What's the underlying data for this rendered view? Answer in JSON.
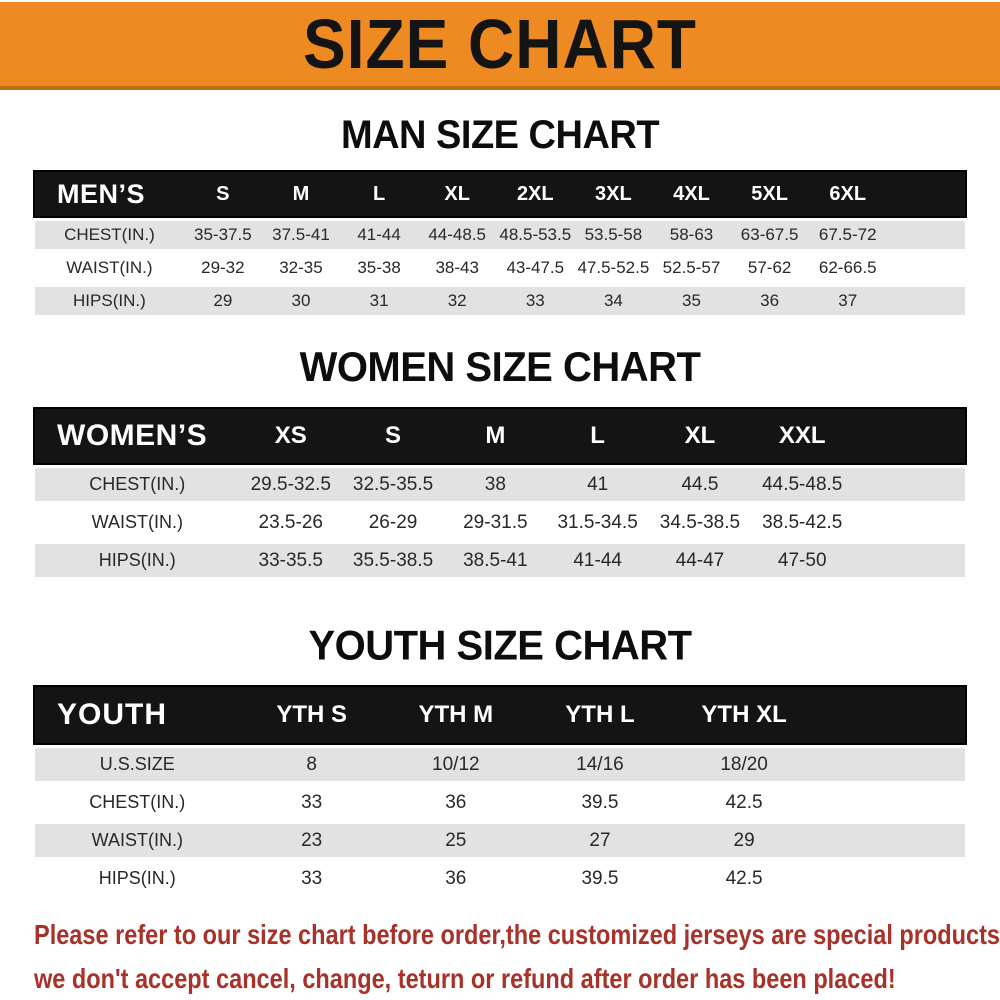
{
  "banner": {
    "title": "SIZE CHART",
    "bg_color": "#ed8a21",
    "text_color": "#141414"
  },
  "sections": {
    "men": {
      "heading": "MAN SIZE CHART",
      "corner_label": "MEN’S",
      "sizes": [
        "S",
        "M",
        "L",
        "XL",
        "2XL",
        "3XL",
        "4XL",
        "5XL",
        "6XL"
      ],
      "rows": [
        {
          "label": "CHEST(IN.)",
          "values": [
            "35-37.5",
            "37.5-41",
            "41-44",
            "44-48.5",
            "48.5-53.5",
            "53.5-58",
            "58-63",
            "63-67.5",
            "67.5-72"
          ]
        },
        {
          "label": "WAIST(IN.)",
          "values": [
            "29-32",
            "32-35",
            "35-38",
            "38-43",
            "43-47.5",
            "47.5-52.5",
            "52.5-57",
            "57-62",
            "62-66.5"
          ]
        },
        {
          "label": "HIPS(IN.)",
          "values": [
            "29",
            "30",
            "31",
            "32",
            "33",
            "34",
            "35",
            "36",
            "37"
          ]
        }
      ]
    },
    "women": {
      "heading": "WOMEN SIZE CHART",
      "corner_label": "WOMEN’S",
      "sizes": [
        "XS",
        "S",
        "M",
        "L",
        "XL",
        "XXL"
      ],
      "rows": [
        {
          "label": "CHEST(IN.)",
          "values": [
            "29.5-32.5",
            "32.5-35.5",
            "38",
            "41",
            "44.5",
            "44.5-48.5"
          ]
        },
        {
          "label": "WAIST(IN.)",
          "values": [
            "23.5-26",
            "26-29",
            "29-31.5",
            "31.5-34.5",
            "34.5-38.5",
            "38.5-42.5"
          ]
        },
        {
          "label": "HIPS(IN.)",
          "values": [
            "33-35.5",
            "35.5-38.5",
            "38.5-41",
            "41-44",
            "44-47",
            "47-50"
          ]
        }
      ]
    },
    "youth": {
      "heading": "YOUTH SIZE CHART",
      "corner_label": "YOUTH",
      "sizes": [
        "YTH S",
        "YTH M",
        "YTH L",
        "YTH XL"
      ],
      "rows": [
        {
          "label": "U.S.SIZE",
          "values": [
            "8",
            "10/12",
            "14/16",
            "18/20"
          ]
        },
        {
          "label": "CHEST(IN.)",
          "values": [
            "33",
            "36",
            "39.5",
            "42.5"
          ]
        },
        {
          "label": "WAIST(IN.)",
          "values": [
            "23",
            "25",
            "27",
            "29"
          ]
        },
        {
          "label": "HIPS(IN.)",
          "values": [
            "33",
            "36",
            "39.5",
            "42.5"
          ]
        }
      ]
    }
  },
  "footer": {
    "line1": "Please refer to our size chart before order,the customized jerseys are special products,",
    "line2": "we don't accept cancel, change, teturn or refund after order has been placed!",
    "text_color": "#a83229"
  },
  "colors": {
    "header_row_bg": "#141414",
    "shaded_row_bg": "#e2e2e2",
    "body_text": "#282828"
  }
}
